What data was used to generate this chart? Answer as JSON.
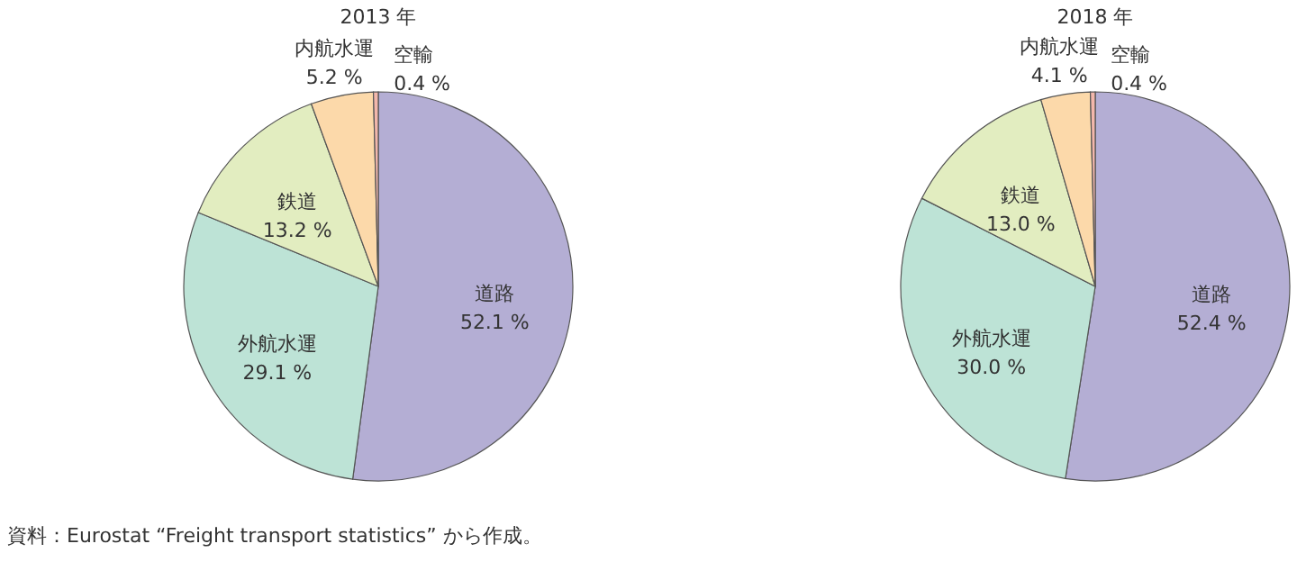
{
  "chart_data": [
    {
      "type": "pie",
      "title": "2013 年",
      "categories": [
        "道路",
        "外航水運",
        "鉄道",
        "内航水運",
        "空輸"
      ],
      "values": [
        52.1,
        29.1,
        13.2,
        5.2,
        0.4
      ],
      "value_labels": [
        "52.1 %",
        "29.1 %",
        "13.2 %",
        "5.2 %",
        "0.4 %"
      ],
      "colors": [
        "#b4aed4",
        "#bde3d6",
        "#e2edc0",
        "#fcd9aa",
        "#f3b7ab"
      ],
      "annotations": [
        "資料：Eurostat “Freight transport statistics” から作成。"
      ]
    },
    {
      "type": "pie",
      "title": "2018 年",
      "categories": [
        "道路",
        "外航水運",
        "鉄道",
        "内航水運",
        "空輸"
      ],
      "values": [
        52.4,
        30.0,
        13.0,
        4.1,
        0.4
      ],
      "value_labels": [
        "52.4 %",
        "30.0 %",
        "13.0 %",
        "4.1 %",
        "0.4 %"
      ],
      "colors": [
        "#b4aed4",
        "#bde3d6",
        "#e2edc0",
        "#fcd9aa",
        "#f3b7ab"
      ]
    }
  ]
}
